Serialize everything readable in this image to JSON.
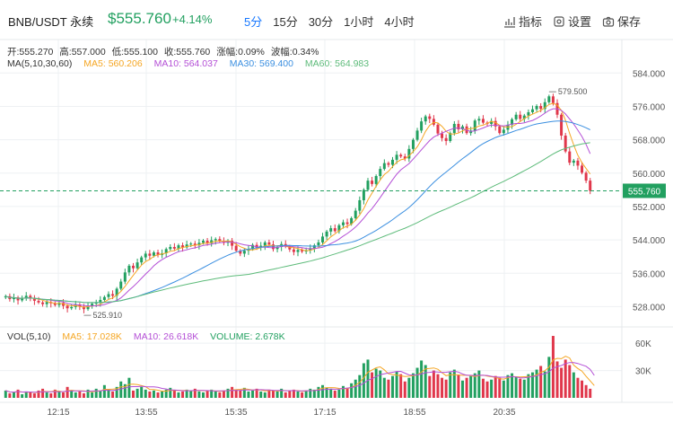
{
  "header": {
    "symbol": "BNB/USDT 永续",
    "price": "$555.760",
    "change": "+4.14%"
  },
  "intervals": [
    "5分",
    "15分",
    "30分",
    "1小时",
    "4小时"
  ],
  "active_interval": "5分",
  "tools": {
    "indicators": "指标",
    "settings": "设置",
    "save": "保存"
  },
  "ohlc": {
    "open": "开:555.270",
    "high": "高:557.000",
    "low": "低:555.100",
    "close": "收:555.760",
    "change": "涨幅:0.09%",
    "amplitude": "波幅:0.34%"
  },
  "ma": {
    "label": "MA(5,10,30,60)",
    "ma5": "MA5: 560.206",
    "ma10": "MA10: 564.037",
    "ma30": "MA30: 569.400",
    "ma60": "MA60: 564.983"
  },
  "vol": {
    "label": "VOL(5,10)",
    "ma5": "MA5: 17.028K",
    "ma10": "MA10: 26.618K",
    "volume": "VOLUME: 2.678K"
  },
  "colors": {
    "up": "#22a060",
    "down": "#e0374b",
    "ma5": "#f5a623",
    "ma10": "#b44fd6",
    "ma30": "#3b8fe0",
    "ma60": "#5dbb7a",
    "accent": "#1677ff"
  },
  "chart_data": {
    "type": "candlestick",
    "price_axis_ticks": [
      "584.000",
      "576.000",
      "568.000",
      "560.000",
      "552.000",
      "544.000",
      "536.000",
      "528.000"
    ],
    "price_range": [
      524,
      586
    ],
    "current_price_label": "555.760",
    "high_marker": "579.500",
    "low_marker": "525.910",
    "volume_axis_ticks": [
      "60K",
      "30K"
    ],
    "volume_range": [
      0,
      70
    ],
    "time_ticks": [
      "12:15",
      "13:55",
      "15:35",
      "17:15",
      "18:55",
      "20:35"
    ],
    "closes": [
      530.5,
      529.8,
      530.2,
      529.5,
      530.0,
      530.6,
      530.1,
      529.4,
      529.0,
      528.6,
      529.1,
      528.8,
      528.4,
      528.9,
      528.2,
      527.6,
      527.9,
      528.5,
      528.0,
      527.4,
      528.1,
      528.7,
      529.0,
      529.6,
      530.3,
      531.0,
      530.6,
      532.3,
      534.0,
      536.2,
      537.8,
      537.2,
      538.6,
      539.8,
      540.7,
      540.2,
      541.0,
      540.4,
      540.8,
      541.8,
      542.3,
      541.9,
      542.7,
      542.2,
      542.9,
      543.1,
      542.7,
      543.3,
      543.8,
      543.2,
      543.9,
      544.2,
      543.7,
      543.3,
      543.8,
      542.6,
      541.4,
      540.7,
      541.4,
      541.8,
      542.8,
      542.2,
      542.6,
      543.4,
      542.9,
      541.8,
      542.3,
      543.0,
      542.4,
      541.7,
      541.1,
      541.6,
      541.2,
      541.5,
      542.0,
      542.7,
      543.4,
      544.8,
      546.0,
      546.8,
      546.1,
      547.5,
      548.2,
      547.8,
      549.2,
      551.0,
      553.5,
      556.0,
      558.2,
      557.4,
      559.3,
      561.0,
      562.4,
      562.0,
      563.2,
      564.4,
      564.0,
      563.5,
      565.8,
      568.0,
      570.2,
      572.4,
      573.6,
      573.0,
      571.6,
      569.5,
      568.4,
      567.7,
      569.6,
      571.8,
      570.5,
      571.2,
      569.6,
      570.2,
      572.6,
      573.0,
      572.1,
      571.8,
      572.5,
      571.2,
      569.6,
      570.4,
      571.6,
      572.9,
      574.0,
      573.0,
      573.8,
      574.6,
      575.3,
      576.1,
      575.4,
      577.0,
      578.4,
      576.8,
      574.0,
      569.0,
      565.2,
      562.5,
      563.0,
      561.8,
      560.1,
      558.2,
      555.76
    ],
    "volumes": [
      8,
      5,
      6,
      9,
      4,
      7,
      6,
      5,
      8,
      10,
      6,
      5,
      9,
      7,
      6,
      12,
      8,
      6,
      7,
      5,
      9,
      6,
      10,
      8,
      14,
      9,
      7,
      12,
      18,
      15,
      22,
      8,
      10,
      12,
      9,
      7,
      8,
      6,
      7,
      9,
      11,
      8,
      6,
      7,
      9,
      8,
      10,
      7,
      6,
      8,
      9,
      7,
      6,
      8,
      10,
      12,
      9,
      8,
      11,
      7,
      8,
      10,
      7,
      6,
      9,
      8,
      7,
      10,
      6,
      8,
      9,
      7,
      6,
      8,
      10,
      9,
      12,
      14,
      11,
      10,
      8,
      9,
      13,
      11,
      16,
      20,
      25,
      38,
      42,
      28,
      32,
      30,
      22,
      20,
      24,
      29,
      26,
      18,
      22,
      27,
      33,
      41,
      36,
      24,
      30,
      26,
      22,
      20,
      28,
      31,
      25,
      19,
      22,
      24,
      27,
      30,
      21,
      18,
      20,
      24,
      22,
      19,
      25,
      27,
      23,
      21,
      20,
      26,
      28,
      31,
      35,
      29,
      45,
      68,
      40,
      33,
      42,
      36,
      28,
      22,
      19,
      14,
      10,
      2.7
    ]
  }
}
